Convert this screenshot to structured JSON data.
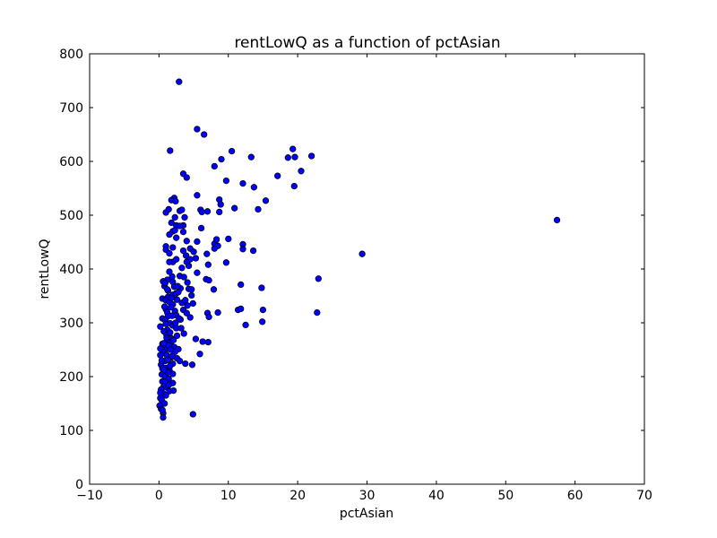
{
  "chart_data": {
    "type": "scatter",
    "title": "rentLowQ as a function of pctAsian",
    "xlabel": "pctAsian",
    "ylabel": "rentLowQ",
    "xlim": [
      -10,
      70
    ],
    "ylim": [
      0,
      800
    ],
    "xticks": [
      "−10",
      "0",
      "10",
      "20",
      "30",
      "40",
      "50",
      "60",
      "70"
    ],
    "yticks": [
      "0",
      "100",
      "200",
      "300",
      "400",
      "500",
      "600",
      "700",
      "800"
    ],
    "grid": false,
    "legend": "none",
    "marker_fill": "#0000ff",
    "marker_edge": "#000000",
    "points": [
      [
        2.9,
        748
      ],
      [
        5.5,
        660
      ],
      [
        6.5,
        650
      ],
      [
        1.6,
        620
      ],
      [
        10.5,
        619
      ],
      [
        19.3,
        623
      ],
      [
        13.3,
        608
      ],
      [
        9.0,
        604
      ],
      [
        18.6,
        607
      ],
      [
        19.6,
        608
      ],
      [
        22.0,
        610
      ],
      [
        12.1,
        559
      ],
      [
        8.0,
        591
      ],
      [
        3.5,
        577
      ],
      [
        17.1,
        573
      ],
      [
        20.5,
        582
      ],
      [
        4.0,
        570
      ],
      [
        13.7,
        552
      ],
      [
        19.5,
        554
      ],
      [
        15.4,
        527
      ],
      [
        5.5,
        537
      ],
      [
        2.2,
        532
      ],
      [
        1.8,
        528
      ],
      [
        2.4,
        526
      ],
      [
        8.7,
        529
      ],
      [
        8.9,
        520
      ],
      [
        9.7,
        564
      ],
      [
        6.0,
        510
      ],
      [
        7.0,
        507
      ],
      [
        6.2,
        506
      ],
      [
        8.7,
        506
      ],
      [
        10.9,
        513
      ],
      [
        14.3,
        511
      ],
      [
        1.0,
        505
      ],
      [
        1.4,
        511
      ],
      [
        3.0,
        508
      ],
      [
        3.3,
        510
      ],
      [
        2.3,
        496
      ],
      [
        3.7,
        496
      ],
      [
        1.8,
        486
      ],
      [
        2.5,
        481
      ],
      [
        3.5,
        481
      ],
      [
        3.0,
        480
      ],
      [
        2.0,
        470
      ],
      [
        3.5,
        469
      ],
      [
        6.1,
        476
      ],
      [
        2.3,
        472
      ],
      [
        1.5,
        464
      ],
      [
        2.5,
        458
      ],
      [
        1.0,
        442
      ],
      [
        4.0,
        452
      ],
      [
        5.5,
        451
      ],
      [
        8.0,
        447
      ],
      [
        8.3,
        455
      ],
      [
        10.0,
        456
      ],
      [
        12.1,
        446
      ],
      [
        8.5,
        443
      ],
      [
        12.1,
        437
      ],
      [
        13.6,
        434
      ],
      [
        1.0,
        436
      ],
      [
        1.5,
        429
      ],
      [
        2.0,
        440
      ],
      [
        3.5,
        434
      ],
      [
        4.5,
        438
      ],
      [
        5.0,
        432
      ],
      [
        3.9,
        425
      ],
      [
        4.5,
        418
      ],
      [
        5.3,
        420
      ],
      [
        6.9,
        428
      ],
      [
        2.0,
        413
      ],
      [
        2.5,
        418
      ],
      [
        1.5,
        413
      ],
      [
        4.0,
        413
      ],
      [
        4.3,
        406
      ],
      [
        7.1,
        408
      ],
      [
        8.0,
        438
      ],
      [
        9.7,
        412
      ],
      [
        3.3,
        402
      ],
      [
        5.5,
        393
      ],
      [
        6.8,
        381
      ],
      [
        7.2,
        379
      ],
      [
        3.0,
        387
      ],
      [
        3.6,
        385
      ],
      [
        1.2,
        380
      ],
      [
        2.0,
        376
      ],
      [
        0.6,
        377
      ],
      [
        0.8,
        368
      ],
      [
        0.9,
        374
      ],
      [
        1.3,
        360
      ],
      [
        2.2,
        367
      ],
      [
        3.1,
        364
      ],
      [
        4.1,
        375
      ],
      [
        4.3,
        363
      ],
      [
        4.7,
        362
      ],
      [
        7.9,
        362
      ],
      [
        11.8,
        371
      ],
      [
        14.8,
        365
      ],
      [
        23.0,
        382
      ],
      [
        29.3,
        428
      ],
      [
        57.4,
        491
      ],
      [
        1.3,
        348
      ],
      [
        2.0,
        352
      ],
      [
        2.5,
        355
      ],
      [
        2.8,
        357
      ],
      [
        4.7,
        351
      ],
      [
        0.5,
        345
      ],
      [
        1.0,
        342
      ],
      [
        1.5,
        339
      ],
      [
        2.0,
        334
      ],
      [
        3.3,
        337
      ],
      [
        4.1,
        332
      ],
      [
        4.9,
        336
      ],
      [
        1.0,
        325
      ],
      [
        1.2,
        319
      ],
      [
        1.7,
        329
      ],
      [
        2.3,
        322
      ],
      [
        3.5,
        324
      ],
      [
        4.0,
        318
      ],
      [
        1.3,
        312
      ],
      [
        2.5,
        314
      ],
      [
        3.1,
        306
      ],
      [
        4.5,
        310
      ],
      [
        7.0,
        318
      ],
      [
        7.2,
        311
      ],
      [
        8.5,
        319
      ],
      [
        11.4,
        324
      ],
      [
        11.8,
        326
      ],
      [
        15.0,
        324
      ],
      [
        22.8,
        319
      ],
      [
        0.5,
        308
      ],
      [
        0.9,
        305
      ],
      [
        1.6,
        299
      ],
      [
        2.0,
        295
      ],
      [
        2.5,
        290
      ],
      [
        1.2,
        287
      ],
      [
        0.2,
        293
      ],
      [
        0.7,
        284
      ],
      [
        1.1,
        277
      ],
      [
        1.8,
        271
      ],
      [
        2.6,
        276
      ],
      [
        3.6,
        280
      ],
      [
        5.3,
        270
      ],
      [
        6.3,
        265
      ],
      [
        7.1,
        264
      ],
      [
        12.5,
        296
      ],
      [
        14.9,
        302
      ],
      [
        1.4,
        265
      ],
      [
        1.7,
        263
      ],
      [
        0.5,
        261
      ],
      [
        0.8,
        256
      ],
      [
        1.2,
        252
      ],
      [
        2.2,
        255
      ],
      [
        2.8,
        251
      ],
      [
        0.6,
        246
      ],
      [
        1.1,
        240
      ],
      [
        1.8,
        236
      ],
      [
        2.6,
        234
      ],
      [
        0.2,
        240
      ],
      [
        0.9,
        229
      ],
      [
        1.3,
        231
      ],
      [
        2.0,
        224
      ],
      [
        3.0,
        229
      ],
      [
        3.8,
        224
      ],
      [
        4.8,
        222
      ],
      [
        5.9,
        242
      ],
      [
        0.3,
        222
      ],
      [
        0.5,
        215
      ],
      [
        1.0,
        216
      ],
      [
        1.5,
        212
      ],
      [
        2.0,
        205
      ],
      [
        0.4,
        204
      ],
      [
        0.9,
        200
      ],
      [
        1.4,
        196
      ],
      [
        2.0,
        188
      ],
      [
        0.5,
        191
      ],
      [
        0.7,
        182
      ],
      [
        1.1,
        180
      ],
      [
        1.5,
        173
      ],
      [
        0.3,
        176
      ],
      [
        0.6,
        169
      ],
      [
        1.0,
        165
      ],
      [
        0.2,
        160
      ],
      [
        0.4,
        156
      ],
      [
        0.8,
        150
      ],
      [
        0.1,
        146
      ],
      [
        0.3,
        140
      ],
      [
        0.6,
        132
      ],
      [
        0.6,
        124
      ],
      [
        4.9,
        130
      ],
      [
        1.2,
        362
      ],
      [
        1.8,
        346
      ],
      [
        2.6,
        343
      ],
      [
        1.9,
        313
      ],
      [
        2.9,
        308
      ],
      [
        1.6,
        282
      ],
      [
        2.1,
        268
      ],
      [
        1.4,
        258
      ],
      [
        2.3,
        246
      ],
      [
        1.6,
        220
      ],
      [
        1.3,
        208
      ],
      [
        0.9,
        190
      ],
      [
        1.4,
        184
      ],
      [
        2.1,
        174
      ],
      [
        0.7,
        262
      ],
      [
        1.0,
        298
      ],
      [
        1.9,
        386
      ],
      [
        2.7,
        368
      ],
      [
        1.5,
        395
      ],
      [
        0.8,
        330
      ],
      [
        0.4,
        230
      ],
      [
        0.2,
        170
      ],
      [
        0.5,
        138
      ],
      [
        0.2,
        252
      ],
      [
        1.7,
        250
      ],
      [
        3.2,
        290
      ],
      [
        2.4,
        300
      ],
      [
        3.8,
        342
      ],
      [
        1.1,
        272
      ],
      [
        1.9,
        238
      ],
      [
        0.8,
        212
      ]
    ]
  }
}
